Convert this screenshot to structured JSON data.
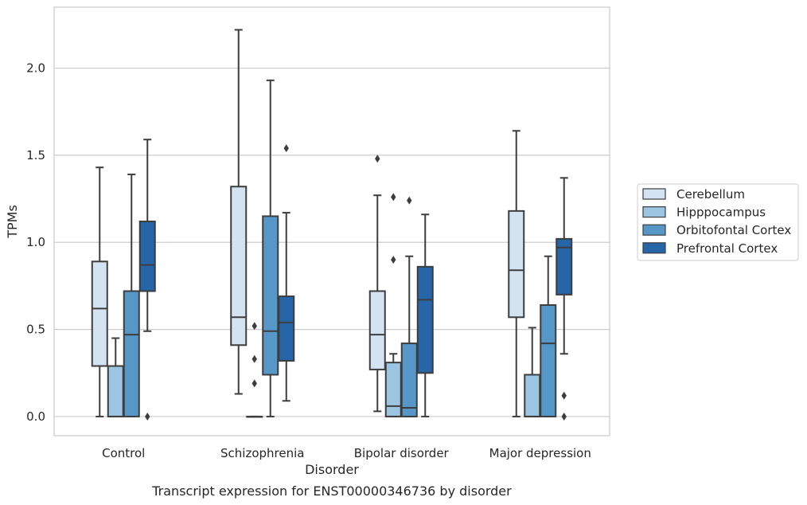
{
  "chart_data": {
    "type": "boxplot",
    "caption": "Transcript expression for ENST00000346736 by disorder",
    "xlabel": "Disorder",
    "ylabel": "TPMs",
    "ylim": [
      -0.11,
      2.35
    ],
    "yticks": [
      0.0,
      0.5,
      1.0,
      1.5,
      2.0
    ],
    "ytick_labels": [
      "0.0",
      "0.5",
      "1.0",
      "1.5",
      "2.0"
    ],
    "grid": true,
    "legend_position": "right",
    "categories": [
      "Control",
      "Schizophrenia",
      "Bipolar disorder",
      "Major depression"
    ],
    "series": [
      {
        "name": "Cerebellum",
        "color": "#d4e3f2",
        "boxes": [
          {
            "whislo": 0.0,
            "q1": 0.29,
            "med": 0.62,
            "q3": 0.89,
            "whishi": 1.43,
            "fliers": []
          },
          {
            "whislo": 0.13,
            "q1": 0.41,
            "med": 0.57,
            "q3": 1.32,
            "whishi": 2.22,
            "fliers": []
          },
          {
            "whislo": 0.03,
            "q1": 0.27,
            "med": 0.47,
            "q3": 0.72,
            "whishi": 1.27,
            "fliers": [
              1.48
            ]
          },
          {
            "whislo": 0.0,
            "q1": 0.57,
            "med": 0.84,
            "q3": 1.18,
            "whishi": 1.64,
            "fliers": []
          }
        ]
      },
      {
        "name": "Hipppocampus",
        "color": "#9bc5e0",
        "boxes": [
          {
            "whislo": 0.0,
            "q1": 0.0,
            "med": 0.0,
            "q3": 0.29,
            "whishi": 0.45,
            "fliers": []
          },
          {
            "whislo": 0.0,
            "q1": 0.0,
            "med": 0.0,
            "q3": 0.0,
            "whishi": 0.0,
            "fliers": [
              0.19,
              0.33,
              0.52
            ]
          },
          {
            "whislo": 0.0,
            "q1": 0.0,
            "med": 0.06,
            "q3": 0.31,
            "whishi": 0.36,
            "fliers": [
              0.9,
              1.26
            ]
          },
          {
            "whislo": 0.0,
            "q1": 0.0,
            "med": 0.0,
            "q3": 0.24,
            "whishi": 0.51,
            "fliers": []
          }
        ]
      },
      {
        "name": "Orbitofontal Cortex",
        "color": "#5697c8",
        "boxes": [
          {
            "whislo": 0.0,
            "q1": 0.0,
            "med": 0.47,
            "q3": 0.72,
            "whishi": 1.39,
            "fliers": []
          },
          {
            "whislo": 0.0,
            "q1": 0.24,
            "med": 0.49,
            "q3": 1.15,
            "whishi": 1.93,
            "fliers": []
          },
          {
            "whislo": 0.0,
            "q1": 0.0,
            "med": 0.05,
            "q3": 0.42,
            "whishi": 0.92,
            "fliers": [
              1.24
            ]
          },
          {
            "whislo": 0.0,
            "q1": 0.0,
            "med": 0.42,
            "q3": 0.64,
            "whishi": 0.92,
            "fliers": []
          }
        ]
      },
      {
        "name": "Prefrontal Cortex",
        "color": "#2565a8",
        "boxes": [
          {
            "whislo": 0.49,
            "q1": 0.72,
            "med": 0.87,
            "q3": 1.12,
            "whishi": 1.59,
            "fliers": [
              0.0
            ]
          },
          {
            "whislo": 0.09,
            "q1": 0.32,
            "med": 0.54,
            "q3": 0.69,
            "whishi": 1.17,
            "fliers": [
              1.54
            ]
          },
          {
            "whislo": 0.0,
            "q1": 0.25,
            "med": 0.67,
            "q3": 0.86,
            "whishi": 1.16,
            "fliers": []
          },
          {
            "whislo": 0.36,
            "q1": 0.7,
            "med": 0.97,
            "q3": 1.02,
            "whishi": 1.37,
            "fliers": [
              0.0,
              0.12
            ]
          }
        ]
      }
    ]
  }
}
